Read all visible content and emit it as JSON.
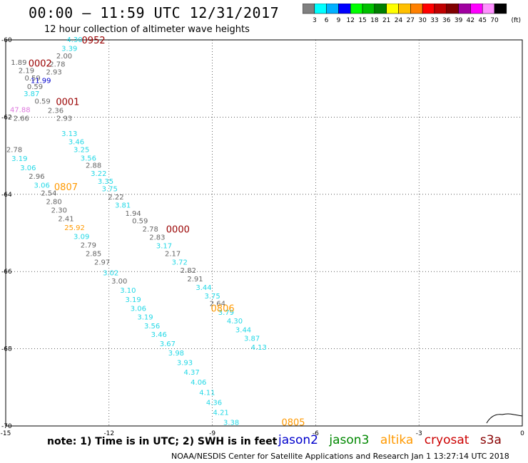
{
  "title": "00:00 – 11:59 UTC 12/31/2017",
  "subtitle": "12 hour collection of altimeter wave heights",
  "colorbar": {
    "colors": [
      "#808080",
      "#00ffff",
      "#00b0ff",
      "#0000ff",
      "#00ff00",
      "#00c000",
      "#008000",
      "#ffff00",
      "#ffc000",
      "#ff8000",
      "#ff0000",
      "#c00000",
      "#800000",
      "#a000a0",
      "#ff00ff",
      "#ff90ff",
      "#000000"
    ],
    "labels": [
      "3",
      "6",
      "9",
      "12",
      "15",
      "18",
      "21",
      "24",
      "27",
      "30",
      "33",
      "36",
      "39",
      "42",
      "45",
      "70"
    ],
    "unit": "(ft)"
  },
  "axes": {
    "x_ticks": [
      {
        "value": -15,
        "label": "-15"
      },
      {
        "value": -12,
        "label": "-12"
      },
      {
        "value": -9,
        "label": "-9"
      },
      {
        "value": -6,
        "label": "-6"
      },
      {
        "value": -3,
        "label": "-3"
      },
      {
        "value": 0,
        "label": "0"
      }
    ],
    "y_ticks": [
      {
        "value": -60,
        "label": "-60"
      },
      {
        "value": -62,
        "label": "-62"
      },
      {
        "value": -64,
        "label": "-64"
      },
      {
        "value": -66,
        "label": "-66"
      },
      {
        "value": -68,
        "label": "-68"
      },
      {
        "value": -70,
        "label": "-70"
      }
    ]
  },
  "colors": {
    "jason2": "#0000cc",
    "jason3": "#008800",
    "altika": "#ff9900",
    "cryosat": "#cc0000",
    "s3a": "#880000",
    "gray": "#666666",
    "cyan": "#22d8e6",
    "pink": "#dd77dd",
    "dark": "#990000"
  },
  "observations": [
    {
      "lon": -13.0,
      "lat": -59.98,
      "text": "4.30",
      "color": "cyan"
    },
    {
      "lon": -13.15,
      "lat": -60.21,
      "text": "3.39",
      "color": "cyan"
    },
    {
      "lon": -13.3,
      "lat": -60.41,
      "text": "2.00",
      "color": "gray"
    },
    {
      "lon": -13.5,
      "lat": -60.62,
      "text": "2.78",
      "color": "gray"
    },
    {
      "lon": -14.62,
      "lat": -60.57,
      "text": "1.89",
      "color": "gray"
    },
    {
      "lon": -14.4,
      "lat": -60.78,
      "text": "2.19",
      "color": "gray"
    },
    {
      "lon": -13.6,
      "lat": -60.82,
      "text": "2.93",
      "color": "gray"
    },
    {
      "lon": -14.22,
      "lat": -60.98,
      "text": "0.59",
      "color": "gray"
    },
    {
      "lon": -13.98,
      "lat": -61.04,
      "text": "11.99",
      "color": "jason2"
    },
    {
      "lon": -14.15,
      "lat": -61.2,
      "text": "0.59",
      "color": "gray"
    },
    {
      "lon": -14.25,
      "lat": -61.38,
      "text": "3.87",
      "color": "cyan"
    },
    {
      "lon": -13.93,
      "lat": -61.58,
      "text": "0.59",
      "color": "gray"
    },
    {
      "lon": -14.58,
      "lat": -61.8,
      "text": "47.88",
      "color": "pink"
    },
    {
      "lon": -13.55,
      "lat": -61.82,
      "text": "2.36",
      "color": "gray"
    },
    {
      "lon": -14.55,
      "lat": -62.02,
      "text": "2.66",
      "color": "gray"
    },
    {
      "lon": -13.3,
      "lat": -62.02,
      "text": "2.93",
      "color": "gray"
    },
    {
      "lon": -13.15,
      "lat": -62.42,
      "text": "3.13",
      "color": "cyan"
    },
    {
      "lon": -12.95,
      "lat": -62.63,
      "text": "3.46",
      "color": "cyan"
    },
    {
      "lon": -12.8,
      "lat": -62.83,
      "text": "3.25",
      "color": "cyan"
    },
    {
      "lon": -14.75,
      "lat": -62.83,
      "text": "2.78",
      "color": "gray"
    },
    {
      "lon": -12.6,
      "lat": -63.05,
      "text": "3.56",
      "color": "cyan"
    },
    {
      "lon": -14.6,
      "lat": -63.06,
      "text": "3.19",
      "color": "cyan"
    },
    {
      "lon": -12.45,
      "lat": -63.24,
      "text": "2.88",
      "color": "gray"
    },
    {
      "lon": -14.35,
      "lat": -63.3,
      "text": "3.06",
      "color": "cyan"
    },
    {
      "lon": -12.3,
      "lat": -63.45,
      "text": "3.22",
      "color": "cyan"
    },
    {
      "lon": -14.1,
      "lat": -63.52,
      "text": "2.96",
      "color": "gray"
    },
    {
      "lon": -12.1,
      "lat": -63.65,
      "text": "3.35",
      "color": "cyan"
    },
    {
      "lon": -13.95,
      "lat": -63.75,
      "text": "3.06",
      "color": "cyan"
    },
    {
      "lon": -11.98,
      "lat": -63.85,
      "text": "3.75",
      "color": "cyan"
    },
    {
      "lon": -13.75,
      "lat": -63.96,
      "text": "2.54",
      "color": "gray"
    },
    {
      "lon": -11.8,
      "lat": -64.06,
      "text": "2.22",
      "color": "gray"
    },
    {
      "lon": -13.6,
      "lat": -64.18,
      "text": "2.80",
      "color": "gray"
    },
    {
      "lon": -11.6,
      "lat": -64.27,
      "text": "3.81",
      "color": "cyan"
    },
    {
      "lon": -13.45,
      "lat": -64.4,
      "text": "2.30",
      "color": "gray"
    },
    {
      "lon": -11.3,
      "lat": -64.48,
      "text": "1.94",
      "color": "gray"
    },
    {
      "lon": -13.25,
      "lat": -64.62,
      "text": "2.41",
      "color": "gray"
    },
    {
      "lon": -11.1,
      "lat": -64.68,
      "text": "0.59",
      "color": "gray"
    },
    {
      "lon": -13.0,
      "lat": -64.85,
      "text": "25.92",
      "color": "altika"
    },
    {
      "lon": -10.8,
      "lat": -64.89,
      "text": "2.78",
      "color": "gray"
    },
    {
      "lon": -12.8,
      "lat": -65.08,
      "text": "3.09",
      "color": "cyan"
    },
    {
      "lon": -10.6,
      "lat": -65.1,
      "text": "2.83",
      "color": "gray"
    },
    {
      "lon": -12.6,
      "lat": -65.3,
      "text": "2.79",
      "color": "gray"
    },
    {
      "lon": -10.4,
      "lat": -65.32,
      "text": "3.17",
      "color": "cyan"
    },
    {
      "lon": -12.45,
      "lat": -65.53,
      "text": "2.85",
      "color": "gray"
    },
    {
      "lon": -10.15,
      "lat": -65.53,
      "text": "2.17",
      "color": "gray"
    },
    {
      "lon": -12.2,
      "lat": -65.75,
      "text": "2.97",
      "color": "gray"
    },
    {
      "lon": -9.95,
      "lat": -65.75,
      "text": "3.72",
      "color": "cyan"
    },
    {
      "lon": -9.7,
      "lat": -65.96,
      "text": "2.82",
      "color": "gray"
    },
    {
      "lon": -11.95,
      "lat": -66.02,
      "text": "3.02",
      "color": "cyan"
    },
    {
      "lon": -9.5,
      "lat": -66.18,
      "text": "2.91",
      "color": "gray"
    },
    {
      "lon": -11.7,
      "lat": -66.24,
      "text": "3.00",
      "color": "gray"
    },
    {
      "lon": -9.25,
      "lat": -66.4,
      "text": "3.44",
      "color": "cyan"
    },
    {
      "lon": -11.45,
      "lat": -66.48,
      "text": "3.10",
      "color": "cyan"
    },
    {
      "lon": -9.0,
      "lat": -66.62,
      "text": "3.75",
      "color": "cyan"
    },
    {
      "lon": -11.3,
      "lat": -66.72,
      "text": "3.19",
      "color": "cyan"
    },
    {
      "lon": -8.85,
      "lat": -66.82,
      "text": "2.64",
      "color": "gray"
    },
    {
      "lon": -11.15,
      "lat": -66.95,
      "text": "3.06",
      "color": "cyan"
    },
    {
      "lon": -8.6,
      "lat": -67.05,
      "text": "3.79",
      "color": "cyan"
    },
    {
      "lon": -10.95,
      "lat": -67.17,
      "text": "3.19",
      "color": "cyan"
    },
    {
      "lon": -8.35,
      "lat": -67.27,
      "text": "4.30",
      "color": "cyan"
    },
    {
      "lon": -10.75,
      "lat": -67.4,
      "text": "3.56",
      "color": "cyan"
    },
    {
      "lon": -8.1,
      "lat": -67.5,
      "text": "3.44",
      "color": "cyan"
    },
    {
      "lon": -10.55,
      "lat": -67.62,
      "text": "3.46",
      "color": "cyan"
    },
    {
      "lon": -7.85,
      "lat": -67.72,
      "text": "3.87",
      "color": "cyan"
    },
    {
      "lon": -10.3,
      "lat": -67.86,
      "text": "3.67",
      "color": "cyan"
    },
    {
      "lon": -7.65,
      "lat": -67.95,
      "text": "4.13",
      "color": "cyan"
    },
    {
      "lon": -10.05,
      "lat": -68.1,
      "text": "3.98",
      "color": "cyan"
    },
    {
      "lon": -9.8,
      "lat": -68.35,
      "text": "3.93",
      "color": "cyan"
    },
    {
      "lon": -9.6,
      "lat": -68.6,
      "text": "4.37",
      "color": "cyan"
    },
    {
      "lon": -9.4,
      "lat": -68.86,
      "text": "4.06",
      "color": "cyan"
    },
    {
      "lon": -9.15,
      "lat": -69.12,
      "text": "4.11",
      "color": "cyan"
    },
    {
      "lon": -8.95,
      "lat": -69.38,
      "text": "4.36",
      "color": "cyan"
    },
    {
      "lon": -8.75,
      "lat": -69.64,
      "text": "4.21",
      "color": "cyan"
    },
    {
      "lon": -8.45,
      "lat": -69.9,
      "text": "3.38",
      "color": "cyan"
    }
  ],
  "times": [
    {
      "lon": -12.45,
      "lat": -60.0,
      "text": "0952",
      "color": "dark"
    },
    {
      "lon": -14.0,
      "lat": -60.6,
      "text": "0002",
      "color": "dark"
    },
    {
      "lon": -13.2,
      "lat": -61.6,
      "text": "0001",
      "color": "dark"
    },
    {
      "lon": -13.25,
      "lat": -63.8,
      "text": "0807",
      "color": "altika"
    },
    {
      "lon": -10.0,
      "lat": -64.9,
      "text": "0000",
      "color": "dark"
    },
    {
      "lon": -8.7,
      "lat": -66.95,
      "text": "0806",
      "color": "altika"
    },
    {
      "lon": -6.65,
      "lat": -69.9,
      "text": "0805",
      "color": "altika"
    }
  ],
  "note": "note:  1) Time is in UTC;  2) SWH is in feet",
  "legend": [
    {
      "label": "jason2",
      "color": "#0000cc"
    },
    {
      "label": "jason3",
      "color": "#008800"
    },
    {
      "label": "altika",
      "color": "#ff9900"
    },
    {
      "label": "cryosat",
      "color": "#cc0000"
    },
    {
      "label": "s3a",
      "color": "#880000"
    }
  ],
  "credit": "NOAA/NESDIS Center for Satellite Applications and Research    Jan  1 13:27:14 UTC 2018"
}
